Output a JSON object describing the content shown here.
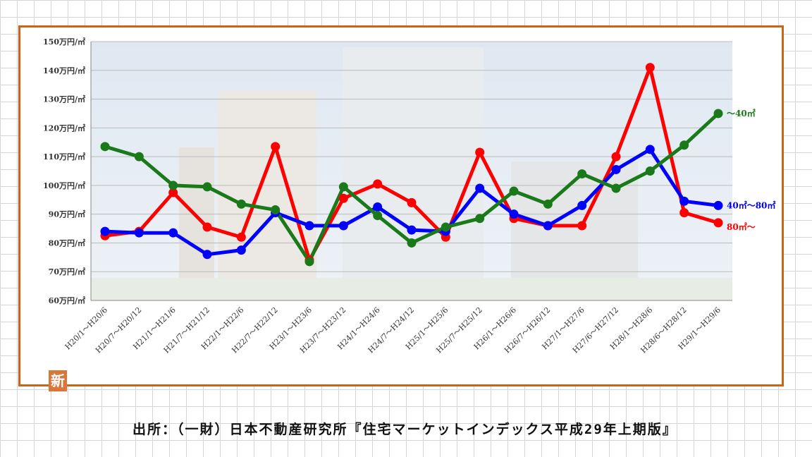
{
  "source_text": "出所：（一財）日本不動産研究所『住宅マーケットインデックス平成29年上期版』",
  "stamp_text": "新",
  "colors": {
    "frame": "#c8651a",
    "red": "#ff0000",
    "blue": "#0000ff",
    "green": "#1a7a1a"
  },
  "chart_data": {
    "type": "line",
    "y_unit": "万円/㎡",
    "ylim": [
      60,
      150
    ],
    "yticks": [
      "150万円/㎡",
      "140万円/㎡",
      "130万円/㎡",
      "120万円/㎡",
      "110万円/㎡",
      "100万円/㎡",
      "90万円/㎡",
      "80万円/㎡",
      "70万円/㎡",
      "60万円/㎡"
    ],
    "grid": true,
    "categories": [
      "H20/1〜H20/6",
      "H20/7〜H20/12",
      "H21/1〜H21/6",
      "H21/7〜H21/12",
      "H22/1〜H22/6",
      "H22/7〜H22/12",
      "H23/1〜H23/6",
      "H23/7〜H23/12",
      "H24/1〜H24/6",
      "H24/7〜H24/12",
      "H25/1〜H25/6",
      "H25/7〜H25/12",
      "H26/1〜H26/6",
      "H26/7〜H26/12",
      "H27/1〜H27/6",
      "H27/6〜H27/12",
      "H28/1〜H28/6",
      "H28/6〜H28/12",
      "H29/1〜H29/6"
    ],
    "series": [
      {
        "name": "80㎡〜",
        "color": "#ff0000",
        "values": [
          82.5,
          84,
          97.5,
          85.5,
          82,
          113.5,
          74,
          95.5,
          100.5,
          94,
          82,
          111.5,
          88.5,
          86,
          86,
          110,
          141,
          90.5,
          87
        ]
      },
      {
        "name": "40㎡〜80㎡",
        "color": "#0000ff",
        "values": [
          84,
          83.5,
          83.5,
          76,
          77.5,
          90.5,
          86,
          86,
          92.5,
          84.5,
          84,
          99,
          90,
          86,
          93,
          105.5,
          112.5,
          94.5,
          93
        ]
      },
      {
        "name": "〜40㎡",
        "color": "#1a7a1a",
        "values": [
          113.5,
          110,
          100,
          99.5,
          93.5,
          91.5,
          73.5,
          99.5,
          89.5,
          80,
          85.5,
          88.5,
          98,
          93.5,
          104,
          99,
          105,
          114,
          125
        ]
      }
    ]
  }
}
